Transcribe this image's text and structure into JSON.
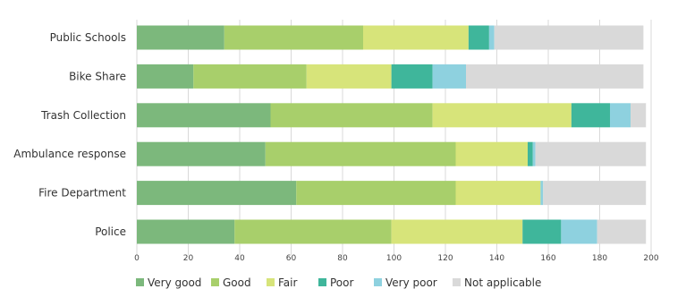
{
  "chart_data": {
    "type": "bar",
    "orientation": "horizontal",
    "stacked": true,
    "title": "",
    "xlabel": "",
    "ylabel": "",
    "xlim": [
      0,
      200
    ],
    "x_ticks": [
      "0",
      "20",
      "40",
      "60",
      "80",
      "100",
      "120",
      "140",
      "160",
      "180",
      "200"
    ],
    "grid": "vertical",
    "legend_position": "bottom",
    "categories": [
      "Public Schools",
      "Bike Share",
      "Trash Collection",
      "Ambulance response",
      "Fire Department",
      "Police"
    ],
    "series": [
      {
        "name": "Very good",
        "color": "#7cb87c",
        "values": [
          34,
          22,
          52,
          50,
          62,
          38
        ]
      },
      {
        "name": "Good",
        "color": "#a8cf6b",
        "values": [
          54,
          44,
          63,
          74,
          62,
          61
        ]
      },
      {
        "name": "Fair",
        "color": "#d7e47a",
        "values": [
          41,
          33,
          54,
          28,
          33,
          51
        ]
      },
      {
        "name": "Poor",
        "color": "#3fb69b",
        "values": [
          8,
          16,
          15,
          2,
          0,
          15
        ]
      },
      {
        "name": "Very poor",
        "color": "#8ed1df",
        "values": [
          2,
          13,
          8,
          1,
          1,
          14
        ]
      },
      {
        "name": "Not applicable",
        "color": "#d9d9d9",
        "values": [
          58,
          69,
          6,
          43,
          40,
          19
        ]
      }
    ]
  }
}
